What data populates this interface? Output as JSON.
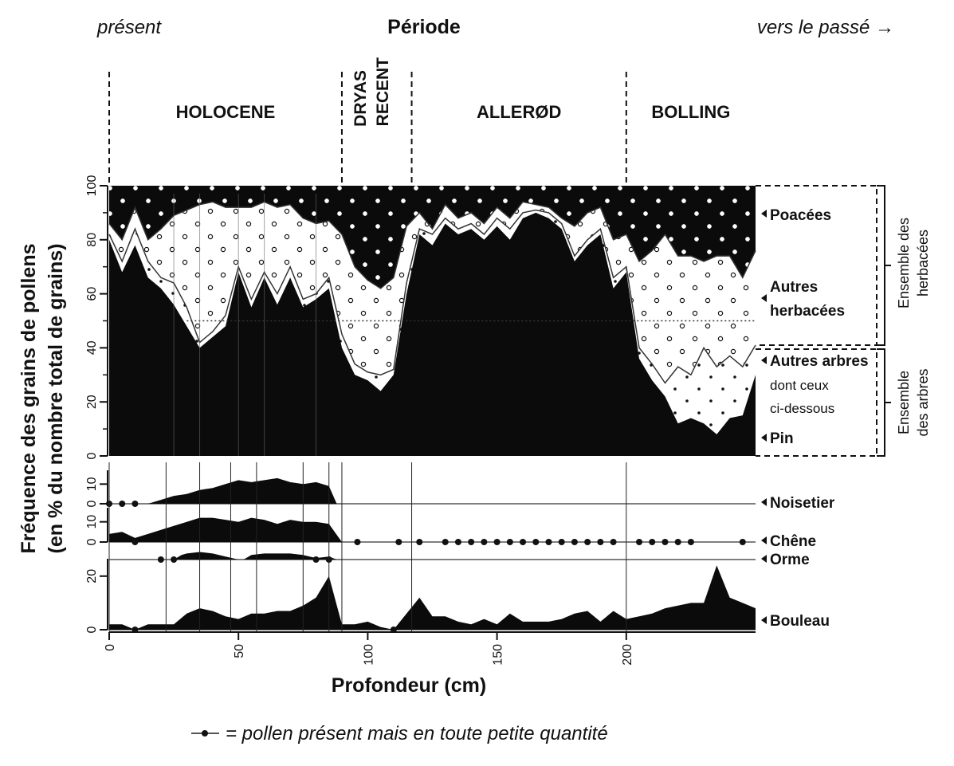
{
  "header": {
    "left_label": "présent",
    "title": "Période",
    "right_label": "vers le passé →"
  },
  "periods": [
    {
      "label": "HOLOCENE",
      "from": 0,
      "to": 90
    },
    {
      "label": "DRYAS",
      "label2": "RECENT",
      "from": 90,
      "to": 117
    },
    {
      "label": "ALLERØD",
      "from": 117,
      "to": 200
    },
    {
      "label": "BOLLING",
      "from": 200,
      "to": 250
    }
  ],
  "y_axis_title_line1": "Fréquence des grains de pollens",
  "y_axis_title_line2": "(en % du nombre total de grains)",
  "x_axis_title": "Profondeur (cm)",
  "x_ticks": [
    "0",
    "50",
    "100",
    "150",
    "200"
  ],
  "right_labels": {
    "poacees": "Poacées",
    "autres_herbacees_1": "Autres",
    "autres_herbacees_2": "herbacées",
    "autres_arbres": "Autres arbres",
    "dont_1": "dont ceux",
    "dont_2": "ci-dessous",
    "pin": "Pin",
    "noisetier": "Noisetier",
    "chene": "Chêne",
    "orme": "Orme",
    "bouleau": "Bouleau",
    "group_herb_1": "Ensemble des",
    "group_herb_2": "herbacées",
    "group_trees_1": "Ensemble",
    "group_trees_2": "des arbres"
  },
  "legend_text": "= pollen présent mais en toute petite quantité",
  "chart_data": [
    {
      "type": "area",
      "title": "",
      "xlabel": "Profondeur (cm)",
      "ylabel": "Fréquence des grains de pollens (en % du nombre total de grains)",
      "xlim": [
        0,
        250
      ],
      "ylim": [
        0,
        100
      ],
      "y_ticks": [
        "0",
        "20",
        "40",
        "60",
        "80",
        "100"
      ],
      "x": [
        0,
        5,
        10,
        15,
        20,
        25,
        30,
        35,
        40,
        45,
        50,
        55,
        60,
        65,
        70,
        75,
        80,
        85,
        90,
        95,
        100,
        105,
        110,
        115,
        120,
        125,
        130,
        135,
        140,
        145,
        150,
        155,
        160,
        165,
        170,
        175,
        180,
        185,
        190,
        195,
        200,
        205,
        210,
        215,
        220,
        225,
        230,
        235,
        240,
        245,
        250
      ],
      "series": [
        {
          "name": "Pin",
          "values": [
            80,
            68,
            78,
            66,
            62,
            56,
            48,
            40,
            44,
            48,
            68,
            55,
            66,
            56,
            66,
            55,
            58,
            62,
            40,
            30,
            28,
            24,
            30,
            60,
            82,
            78,
            86,
            82,
            84,
            80,
            85,
            80,
            88,
            90,
            88,
            84,
            72,
            78,
            82,
            62,
            68,
            36,
            28,
            22,
            12,
            14,
            12,
            8,
            14,
            15,
            30
          ]
        },
        {
          "name": "Autres arbres",
          "values": [
            82,
            72,
            84,
            72,
            66,
            64,
            55,
            42,
            46,
            52,
            70,
            58,
            68,
            60,
            70,
            58,
            60,
            66,
            45,
            34,
            31,
            30,
            32,
            64,
            84,
            82,
            88,
            84,
            86,
            82,
            88,
            84,
            90,
            91,
            90,
            86,
            74,
            80,
            84,
            66,
            70,
            40,
            34,
            27,
            33,
            30,
            40,
            33,
            37,
            33,
            41
          ]
        },
        {
          "name": "Autres herbacées",
          "values": [
            86,
            80,
            92,
            80,
            84,
            89,
            91,
            93,
            94,
            92,
            92,
            92,
            94,
            92,
            93,
            88,
            86,
            87,
            82,
            70,
            65,
            62,
            66,
            85,
            90,
            84,
            93,
            88,
            90,
            86,
            92,
            88,
            94,
            93,
            92,
            88,
            85,
            90,
            92,
            80,
            82,
            72,
            76,
            82,
            74,
            74,
            72,
            74,
            74,
            66,
            76
          ]
        }
      ],
      "annotations": [
        "Poacées",
        "Autres herbacées",
        "Autres arbres",
        "Pin"
      ]
    },
    {
      "type": "area",
      "title": "Noisetier",
      "y_ticks": [
        "0",
        "10"
      ],
      "ylim": [
        0,
        15
      ],
      "x": [
        0,
        10,
        15,
        20,
        25,
        30,
        35,
        40,
        45,
        50,
        55,
        60,
        65,
        70,
        75,
        80,
        85,
        88
      ],
      "values": [
        0,
        0,
        0,
        2,
        4,
        5,
        7,
        8,
        10,
        12,
        11,
        12,
        13,
        11,
        10,
        11,
        9,
        0
      ],
      "trace_points": [
        0,
        5,
        10
      ]
    },
    {
      "type": "area",
      "title": "Chêne",
      "y_ticks": [
        "0",
        "10"
      ],
      "ylim": [
        0,
        15
      ],
      "x": [
        0,
        5,
        10,
        15,
        20,
        25,
        30,
        35,
        40,
        45,
        50,
        55,
        60,
        65,
        70,
        75,
        80,
        85,
        90
      ],
      "values": [
        4,
        5,
        2,
        4,
        6,
        8,
        10,
        12,
        12,
        11,
        10,
        12,
        11,
        9,
        11,
        10,
        10,
        9,
        0
      ],
      "trace_points": [
        10,
        96,
        112,
        120,
        130,
        135,
        140,
        145,
        150,
        155,
        160,
        165,
        170,
        175,
        180,
        185,
        190,
        195,
        205,
        210,
        215,
        220,
        225,
        245
      ]
    },
    {
      "type": "area",
      "title": "Orme",
      "ylim": [
        0,
        10
      ],
      "x": [
        25,
        28,
        30,
        35,
        40,
        45,
        50,
        52,
        55,
        60,
        65,
        70,
        75,
        80,
        85,
        88
      ],
      "values": [
        0,
        3,
        4,
        5,
        4,
        2,
        0,
        0,
        3,
        4,
        4,
        4,
        3,
        1,
        2,
        0
      ],
      "trace_points": [
        20,
        25,
        80,
        85
      ]
    },
    {
      "type": "area",
      "title": "Bouleau",
      "y_ticks": [
        "0",
        "20"
      ],
      "ylim": [
        0,
        25
      ],
      "x": [
        0,
        5,
        10,
        15,
        20,
        25,
        30,
        35,
        40,
        45,
        50,
        55,
        60,
        65,
        70,
        75,
        80,
        85,
        90,
        95,
        100,
        105,
        110,
        115,
        120,
        125,
        130,
        135,
        140,
        145,
        150,
        155,
        160,
        165,
        170,
        175,
        180,
        185,
        190,
        195,
        200,
        205,
        210,
        215,
        220,
        225,
        230,
        235,
        240,
        245,
        250
      ],
      "values": [
        2,
        2,
        0,
        2,
        2,
        2,
        6,
        8,
        7,
        5,
        4,
        6,
        6,
        7,
        7,
        9,
        12,
        20,
        2,
        2,
        3,
        1,
        0,
        6,
        12,
        5,
        5,
        3,
        2,
        4,
        2,
        6,
        3,
        3,
        3,
        4,
        6,
        7,
        3,
        7,
        4,
        5,
        6,
        8,
        9,
        10,
        10,
        24,
        12,
        10,
        8
      ],
      "trace_points": [
        10,
        110
      ]
    }
  ]
}
